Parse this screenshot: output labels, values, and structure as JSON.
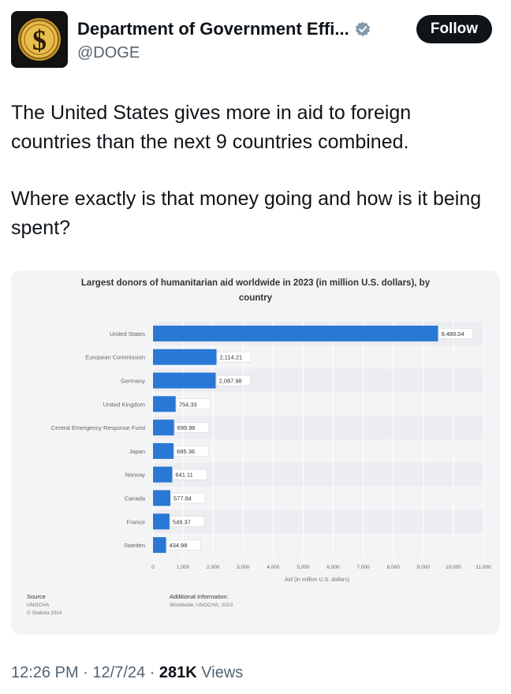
{
  "post": {
    "author_name": "Department of Government Effi...",
    "handle": "@DOGE",
    "follow_label": "Follow",
    "avatar_symbol": "$",
    "verified_icon": "verified-badge-icon",
    "paragraphs": [
      "The United States gives more in aid to foreign countries than the next 9 countries combined.",
      "Where exactly is that money going and how is it being spent?"
    ],
    "time": "12:26 PM",
    "date": "12/7/24",
    "views_count": "281K",
    "views_label": "Views"
  },
  "chart_data": {
    "type": "bar",
    "orientation": "horizontal",
    "title_line1": "Largest donors of humanitarian aid worldwide in 2023 (in million U.S. dollars), by",
    "title_line2": "country",
    "categories": [
      "United States",
      "European Commission",
      "Germany",
      "United Kingdom",
      "Central Emergency Response Fund",
      "Japan",
      "Norway",
      "Canada",
      "France",
      "Sweden"
    ],
    "values": [
      9489.04,
      2114.21,
      2087.98,
      754.33,
      699.96,
      685.36,
      641.11,
      577.84,
      549.37,
      434.98
    ],
    "value_labels": [
      "9,489.04",
      "2,114.21",
      "2,087.98",
      "754.33",
      "699.96",
      "685.36",
      "641.11",
      "577.84",
      "549.37",
      "434.98"
    ],
    "xlim": [
      0,
      11000
    ],
    "ticks": [
      0,
      1000,
      2000,
      3000,
      4000,
      5000,
      6000,
      7000,
      8000,
      9000,
      10000,
      11000
    ],
    "tick_labels": [
      "0",
      "1,000",
      "2,000",
      "3,000",
      "4,000",
      "5,000",
      "6,000",
      "7,000",
      "8,000",
      "9,000",
      "10,000",
      "11,000"
    ],
    "xlabel": "Aid (in million U.S. dollars)",
    "bar_color": "#2a78d6",
    "source_heading": "Source",
    "source_lines": [
      "UNOCHA",
      "© Statista 2024"
    ],
    "additional_heading": "Additional Information:",
    "additional_text": "Worldwide; UNOCHA; 2023"
  }
}
